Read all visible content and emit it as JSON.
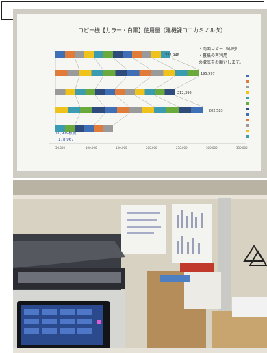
{
  "chart_photo": {
    "title": "コピー機【カラー・白黒】使用量（建機課コニカミノルタ）",
    "callout_value": "10,979枚減",
    "callout_value2": "178,967",
    "bar_totals": [
      "222,946",
      "195,997",
      "212,399",
      "202,583"
    ],
    "note_lines": [
      "・両面コピー（印刷）",
      "・裏紙の再利用",
      "の徹底をお願いします。"
    ],
    "x_ticks": [
      "50,000",
      "100,000",
      "150,000",
      "200,000",
      "250,000",
      "300,000",
      "350,000"
    ],
    "colors": {
      "blue": "#3f6fb4",
      "orange": "#e07b39",
      "gray": "#9a9a9a",
      "yellow": "#f0c21c",
      "teal": "#3b9bb0",
      "green": "#6aaa3d",
      "navy": "#2f4b7c"
    }
  }
}
